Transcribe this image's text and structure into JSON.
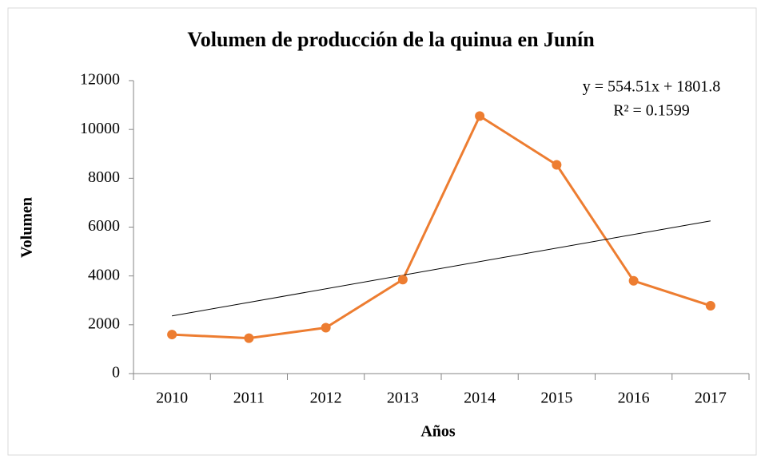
{
  "chart_data": {
    "type": "line",
    "title": "Volumen de producción de la quinua en Junín",
    "xlabel": "Años",
    "ylabel": "Volumen",
    "categories": [
      "2010",
      "2011",
      "2012",
      "2013",
      "2014",
      "2015",
      "2016",
      "2017"
    ],
    "series": [
      {
        "name": "Volumen",
        "color": "#ed7d31",
        "values": [
          1600,
          1450,
          1880,
          3850,
          10550,
          8550,
          3800,
          2780
        ]
      }
    ],
    "ylim": [
      0,
      12000
    ],
    "yticks": [
      0,
      2000,
      4000,
      6000,
      8000,
      10000,
      12000
    ],
    "trendline": "linear",
    "trendline_color": "#000000",
    "annotations": [
      "y = 554.51x + 1801.8",
      "R² = 0.1599"
    ],
    "grid": false
  }
}
